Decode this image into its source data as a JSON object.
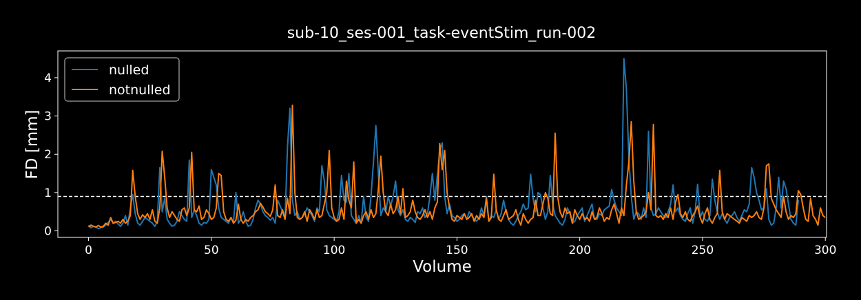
{
  "chart_data": {
    "type": "line",
    "title": "sub-10_ses-001_task-eventStim_run-002",
    "xlabel": "Volume",
    "ylabel": "FD [mm]",
    "xlim": [
      -12.5,
      300.5
    ],
    "ylim": [
      -0.17,
      4.7
    ],
    "xticks": [
      0,
      50,
      100,
      150,
      200,
      250,
      300
    ],
    "yticks": [
      0,
      1,
      2,
      3,
      4
    ],
    "threshold": 0.9,
    "legend_position": "upper-left",
    "background": "#000000",
    "series": [
      {
        "name": "nulled",
        "color": "#1f77b4",
        "values": [
          0.15,
          0.08,
          0.12,
          0.1,
          0.06,
          0.08,
          0.1,
          0.15,
          0.22,
          0.3,
          0.2,
          0.25,
          0.18,
          0.12,
          0.2,
          0.4,
          0.15,
          0.6,
          0.95,
          0.45,
          0.2,
          0.15,
          0.25,
          0.35,
          0.3,
          0.25,
          0.2,
          0.12,
          0.25,
          1.65,
          0.5,
          0.85,
          0.3,
          0.2,
          0.12,
          0.15,
          0.25,
          0.5,
          0.4,
          0.3,
          0.25,
          1.85,
          0.35,
          0.55,
          0.4,
          0.2,
          0.15,
          0.22,
          0.2,
          0.3,
          1.6,
          1.4,
          1.2,
          0.6,
          0.35,
          0.3,
          0.25,
          0.2,
          0.35,
          0.22,
          1.0,
          0.2,
          0.3,
          0.5,
          0.25,
          0.12,
          0.15,
          0.3,
          0.6,
          0.8,
          0.7,
          0.5,
          0.4,
          0.35,
          0.28,
          0.35,
          0.2,
          0.8,
          0.65,
          0.5,
          0.3,
          2.2,
          3.2,
          0.8,
          0.4,
          0.5,
          0.3,
          0.35,
          0.45,
          0.6,
          0.5,
          0.4,
          0.25,
          0.6,
          0.5,
          1.7,
          1.3,
          0.55,
          0.4,
          0.35,
          0.3,
          0.25,
          0.5,
          1.45,
          0.8,
          0.75,
          1.5,
          0.4,
          0.3,
          0.2,
          0.4,
          0.2,
          0.9,
          0.35,
          0.25,
          0.9,
          1.8,
          2.75,
          1.5,
          0.4,
          0.6,
          0.5,
          0.9,
          0.65,
          0.9,
          1.3,
          0.55,
          0.4,
          0.55,
          0.3,
          0.25,
          0.35,
          0.3,
          0.22,
          0.5,
          0.45,
          0.6,
          0.35,
          0.45,
          0.9,
          1.5,
          0.8,
          1.45,
          2.1,
          2.3,
          0.9,
          0.45,
          0.7,
          0.4,
          0.35,
          0.25,
          0.3,
          0.4,
          0.45,
          0.3,
          0.5,
          0.4,
          0.3,
          0.25,
          0.35,
          0.6,
          0.4,
          0.9,
          0.25,
          0.4,
          0.35,
          0.55,
          0.3,
          0.45,
          0.8,
          0.5,
          0.3,
          0.2,
          0.15,
          0.25,
          0.4,
          0.5,
          0.7,
          0.55,
          0.6,
          1.48,
          0.85,
          0.5,
          1.0,
          0.95,
          0.6,
          0.3,
          0.5,
          1.45,
          0.7,
          0.4,
          0.3,
          0.2,
          0.15,
          0.3,
          0.6,
          0.45,
          0.2,
          0.25,
          0.4,
          0.5,
          0.6,
          0.25,
          0.4,
          0.55,
          0.7,
          0.3,
          0.3,
          0.45,
          0.4,
          0.55,
          0.6,
          0.65,
          1.08,
          0.8,
          0.6,
          0.5,
          0.4,
          4.5,
          3.7,
          1.9,
          0.9,
          0.3,
          0.5,
          0.45,
          0.3,
          0.6,
          0.35,
          2.6,
          0.6,
          0.4,
          0.45,
          0.6,
          0.5,
          0.4,
          0.35,
          0.5,
          0.7,
          1.2,
          0.5,
          0.6,
          0.4,
          0.3,
          0.25,
          0.45,
          0.6,
          0.2,
          0.5,
          1.22,
          0.35,
          0.5,
          0.3,
          0.25,
          0.4,
          1.35,
          0.8,
          0.5,
          0.3,
          0.45,
          0.3,
          0.2,
          0.35,
          0.4,
          0.5,
          0.35,
          0.25,
          0.4,
          0.55,
          0.5,
          0.7,
          1.65,
          1.4,
          1.0,
          0.8,
          0.55,
          0.6,
          1.1,
          0.3,
          0.15,
          0.2,
          0.6,
          1.4,
          0.6,
          1.3,
          1.1,
          0.7,
          0.3,
          0.2,
          0.15,
          0.8
        ]
      },
      {
        "name": "notnulled",
        "color": "#ff7f0e",
        "values": [
          0.1,
          0.15,
          0.12,
          0.1,
          0.14,
          0.1,
          0.12,
          0.2,
          0.15,
          0.35,
          0.2,
          0.22,
          0.25,
          0.2,
          0.3,
          0.2,
          0.25,
          0.4,
          1.58,
          0.9,
          0.45,
          0.3,
          0.42,
          0.35,
          0.45,
          0.3,
          0.55,
          0.25,
          0.2,
          0.6,
          2.08,
          1.4,
          0.6,
          0.35,
          0.5,
          0.4,
          0.3,
          0.25,
          0.55,
          0.6,
          0.4,
          0.6,
          2.05,
          0.55,
          0.5,
          0.65,
          0.3,
          0.35,
          0.55,
          0.45,
          0.3,
          0.35,
          0.6,
          1.5,
          1.45,
          0.5,
          0.3,
          0.25,
          0.35,
          0.2,
          0.28,
          0.7,
          0.3,
          0.2,
          0.3,
          0.25,
          0.35,
          0.4,
          0.5,
          0.55,
          0.72,
          0.62,
          0.5,
          0.45,
          0.38,
          0.55,
          1.2,
          0.4,
          0.35,
          0.55,
          0.3,
          0.85,
          0.45,
          3.28,
          1.0,
          0.35,
          0.3,
          0.35,
          0.5,
          0.25,
          0.55,
          0.45,
          0.3,
          0.55,
          0.35,
          0.4,
          0.7,
          1.0,
          2.1,
          0.6,
          0.35,
          0.25,
          0.3,
          0.6,
          0.3,
          1.3,
          0.8,
          0.6,
          1.8,
          0.2,
          0.3,
          0.2,
          0.4,
          0.5,
          0.3,
          0.55,
          0.35,
          0.45,
          1.1,
          1.95,
          1.0,
          0.5,
          0.4,
          0.7,
          0.45,
          0.55,
          0.9,
          0.45,
          1.1,
          0.35,
          0.4,
          0.5,
          0.8,
          0.5,
          0.35,
          0.3,
          0.4,
          0.55,
          0.35,
          0.5,
          0.3,
          0.6,
          0.75,
          2.28,
          1.6,
          2.1,
          1.0,
          0.6,
          0.3,
          0.25,
          0.4,
          0.35,
          0.3,
          0.45,
          0.3,
          0.35,
          0.45,
          0.25,
          0.4,
          0.3,
          0.45,
          0.35,
          0.85,
          0.25,
          0.35,
          1.48,
          0.55,
          0.3,
          0.25,
          0.4,
          0.55,
          0.3,
          0.35,
          0.4,
          0.55,
          0.3,
          0.15,
          0.45,
          0.3,
          0.2,
          0.3,
          0.35,
          0.8,
          0.4,
          0.4,
          0.7,
          1.0,
          0.85,
          0.45,
          0.4,
          2.55,
          0.9,
          0.5,
          0.35,
          0.6,
          0.45,
          0.5,
          0.2,
          0.55,
          0.4,
          0.3,
          0.45,
          0.3,
          0.35,
          0.25,
          0.5,
          0.3,
          0.35,
          0.6,
          0.45,
          0.25,
          0.35,
          0.3,
          0.55,
          0.7,
          0.45,
          0.2,
          0.6,
          0.4,
          1.2,
          1.8,
          2.85,
          1.3,
          0.5,
          0.3,
          0.35,
          0.4,
          0.5,
          1.0,
          0.55,
          2.78,
          0.4,
          0.35,
          0.4,
          0.3,
          0.45,
          0.35,
          0.6,
          0.3,
          0.75,
          0.95,
          0.45,
          0.35,
          0.5,
          0.3,
          0.25,
          0.4,
          0.5,
          0.65,
          0.35,
          0.2,
          0.45,
          0.6,
          0.3,
          0.2,
          0.35,
          0.45,
          1.58,
          0.5,
          0.3,
          0.45,
          0.4,
          0.35,
          0.3,
          0.25,
          0.2,
          0.35,
          0.3,
          0.25,
          0.4,
          0.35,
          0.4,
          0.5,
          0.35,
          0.3,
          0.6,
          1.7,
          1.75,
          0.85,
          0.7,
          0.55,
          0.45,
          0.35,
          0.9,
          0.5,
          0.3,
          0.4,
          0.35,
          0.45,
          1.05,
          0.95,
          0.6,
          0.3,
          0.25,
          0.85,
          0.4,
          0.3,
          0.15,
          0.6,
          0.4,
          0.35
        ]
      }
    ]
  }
}
